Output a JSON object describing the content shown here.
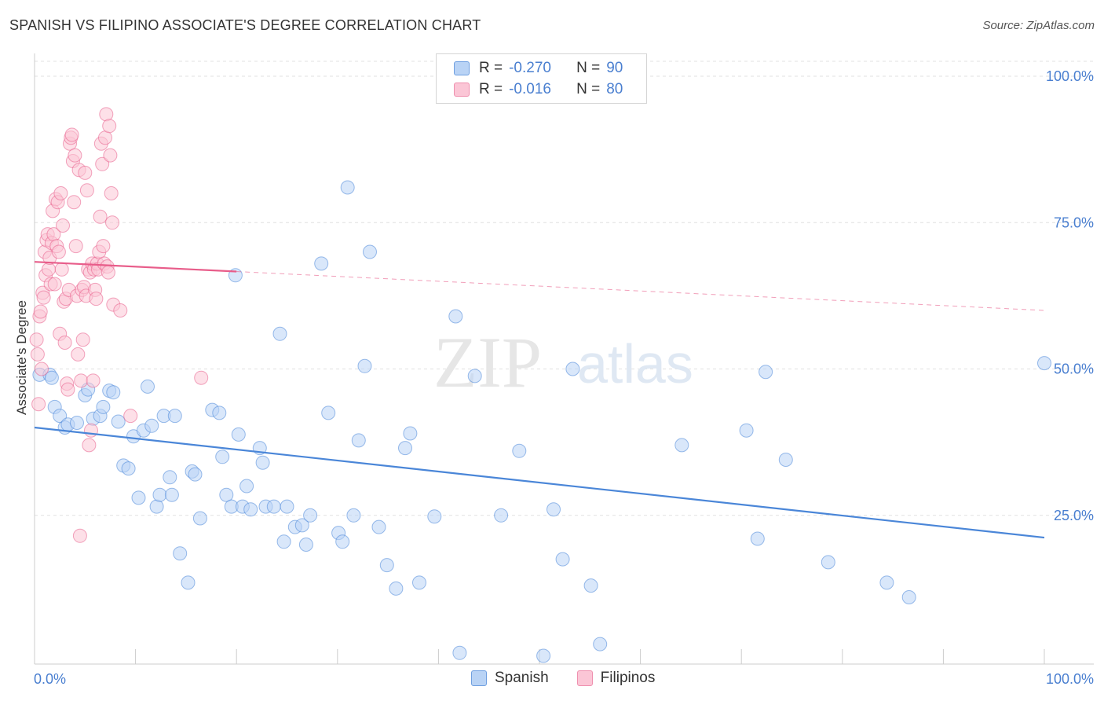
{
  "title": "SPANISH VS FILIPINO ASSOCIATE'S DEGREE CORRELATION CHART",
  "source": "Source: ZipAtlas.com",
  "watermark": {
    "zip": "ZIP",
    "atlas": "atlas"
  },
  "legend": {
    "r_label": "R =",
    "n_label": "N =",
    "rows": [
      {
        "name": "Spanish",
        "r": "-0.270",
        "n": "90",
        "fill": "#b9d3f5",
        "stroke": "#6f9fe0"
      },
      {
        "name": "Filipinos",
        "r": "-0.016",
        "n": "80",
        "fill": "#fbc6d6",
        "stroke": "#ef8fae"
      }
    ]
  },
  "chart_data": {
    "type": "scatter",
    "title": "SPANISH VS FILIPINO ASSOCIATE'S DEGREE CORRELATION CHART",
    "xlabel": "",
    "ylabel": "Associate's Degree",
    "xlim": [
      0,
      100
    ],
    "ylim": [
      0,
      100
    ],
    "x_tick_labels": [
      "0.0%",
      "100.0%"
    ],
    "y_ticks": [
      {
        "value": 100,
        "label": "100.0%"
      },
      {
        "value": 75,
        "label": "75.0%"
      },
      {
        "value": 50,
        "label": "50.0%"
      },
      {
        "value": 25,
        "label": "25.0%"
      }
    ],
    "series": [
      {
        "name": "Spanish",
        "color": "#4a86d8",
        "fill": "#b9d3f5",
        "trend": {
          "x0": 0,
          "y0": 40.0,
          "x1": 100,
          "y1": 21.2,
          "solid_until": 100
        },
        "points": [
          [
            0.5,
            49
          ],
          [
            1.5,
            49
          ],
          [
            1.7,
            48.5
          ],
          [
            2,
            43.5
          ],
          [
            2.5,
            42
          ],
          [
            3,
            40
          ],
          [
            3.3,
            40.5
          ],
          [
            4.2,
            40.8
          ],
          [
            5,
            45.5
          ],
          [
            5.3,
            46.5
          ],
          [
            5.8,
            41.5
          ],
          [
            6.5,
            42
          ],
          [
            6.8,
            43.5
          ],
          [
            7.4,
            46.3
          ],
          [
            7.8,
            46
          ],
          [
            8.3,
            41
          ],
          [
            8.8,
            33.5
          ],
          [
            9.3,
            33
          ],
          [
            9.8,
            38.5
          ],
          [
            10.3,
            28
          ],
          [
            10.8,
            39.5
          ],
          [
            11.2,
            47
          ],
          [
            11.6,
            40.3
          ],
          [
            12.1,
            26.5
          ],
          [
            12.4,
            28.5
          ],
          [
            12.8,
            42
          ],
          [
            13.4,
            31.5
          ],
          [
            13.6,
            28.5
          ],
          [
            13.9,
            42
          ],
          [
            14.4,
            18.5
          ],
          [
            15.2,
            13.5
          ],
          [
            15.6,
            32.5
          ],
          [
            15.9,
            32
          ],
          [
            16.4,
            24.5
          ],
          [
            17.6,
            43
          ],
          [
            18.3,
            42.5
          ],
          [
            18.6,
            35
          ],
          [
            19,
            28.5
          ],
          [
            19.5,
            26.5
          ],
          [
            19.9,
            66
          ],
          [
            20.2,
            38.8
          ],
          [
            20.6,
            26.5
          ],
          [
            21,
            30
          ],
          [
            21.4,
            26
          ],
          [
            22.3,
            36.5
          ],
          [
            22.6,
            34
          ],
          [
            22.9,
            26.5
          ],
          [
            23.7,
            26.5
          ],
          [
            24.3,
            56
          ],
          [
            24.7,
            20.5
          ],
          [
            25,
            26.5
          ],
          [
            25.8,
            23
          ],
          [
            26.5,
            23.3
          ],
          [
            26.9,
            20
          ],
          [
            27.3,
            25
          ],
          [
            28.4,
            68
          ],
          [
            29.1,
            42.5
          ],
          [
            30.1,
            22
          ],
          [
            30.5,
            20.5
          ],
          [
            31,
            81
          ],
          [
            31.6,
            25
          ],
          [
            32.1,
            37.8
          ],
          [
            32.7,
            50.5
          ],
          [
            33.2,
            70
          ],
          [
            34.1,
            23
          ],
          [
            34.9,
            16.5
          ],
          [
            35.8,
            12.5
          ],
          [
            36.7,
            36.5
          ],
          [
            37.2,
            39
          ],
          [
            38.1,
            13.5
          ],
          [
            39.6,
            24.8
          ],
          [
            41.7,
            59
          ],
          [
            42.1,
            1.5
          ],
          [
            43.6,
            48.8
          ],
          [
            46.2,
            25
          ],
          [
            48,
            36
          ],
          [
            50.4,
            1
          ],
          [
            51.4,
            26
          ],
          [
            52.3,
            17.5
          ],
          [
            53.3,
            50
          ],
          [
            55.1,
            13
          ],
          [
            56,
            3
          ],
          [
            64.1,
            37
          ],
          [
            70.5,
            39.5
          ],
          [
            71.6,
            21
          ],
          [
            72.4,
            49.5
          ],
          [
            74.4,
            34.5
          ],
          [
            78.6,
            17
          ],
          [
            84.4,
            13.5
          ],
          [
            86.6,
            11
          ],
          [
            100,
            51
          ]
        ]
      },
      {
        "name": "Filipinos",
        "color": "#e85d8a",
        "fill": "#fbc6d6",
        "trend": {
          "x0": 0,
          "y0": 68.3,
          "x1": 100,
          "y1": 60.0,
          "solid_until": 20
        },
        "points": [
          [
            0.2,
            55
          ],
          [
            0.3,
            52.5
          ],
          [
            0.4,
            44
          ],
          [
            0.5,
            59
          ],
          [
            0.6,
            59.8
          ],
          [
            0.7,
            50
          ],
          [
            0.8,
            63
          ],
          [
            0.9,
            62.2
          ],
          [
            1.0,
            70
          ],
          [
            1.1,
            66
          ],
          [
            1.2,
            72
          ],
          [
            1.3,
            73
          ],
          [
            1.4,
            67
          ],
          [
            1.5,
            69
          ],
          [
            1.6,
            64.5
          ],
          [
            1.7,
            71.5
          ],
          [
            1.8,
            77
          ],
          [
            1.9,
            73
          ],
          [
            2.0,
            64.5
          ],
          [
            2.1,
            79
          ],
          [
            2.2,
            71
          ],
          [
            2.3,
            78.5
          ],
          [
            2.4,
            70
          ],
          [
            2.5,
            56
          ],
          [
            2.6,
            80
          ],
          [
            2.7,
            67
          ],
          [
            2.8,
            74.5
          ],
          [
            2.9,
            61.5
          ],
          [
            3.0,
            54.5
          ],
          [
            3.1,
            62
          ],
          [
            3.2,
            47.5
          ],
          [
            3.3,
            46.5
          ],
          [
            3.4,
            63.5
          ],
          [
            3.5,
            88.5
          ],
          [
            3.6,
            89.5
          ],
          [
            3.7,
            90
          ],
          [
            3.8,
            85.5
          ],
          [
            3.9,
            78.5
          ],
          [
            4.0,
            86.5
          ],
          [
            4.1,
            71
          ],
          [
            4.2,
            62.5
          ],
          [
            4.3,
            52.5
          ],
          [
            4.4,
            84
          ],
          [
            4.5,
            21.5
          ],
          [
            4.6,
            48
          ],
          [
            4.7,
            63.5
          ],
          [
            4.8,
            55
          ],
          [
            4.9,
            64
          ],
          [
            5.0,
            83.5
          ],
          [
            5.1,
            62.5
          ],
          [
            5.2,
            80.5
          ],
          [
            5.3,
            67
          ],
          [
            5.4,
            37
          ],
          [
            5.5,
            66.5
          ],
          [
            5.6,
            39.5
          ],
          [
            5.7,
            68
          ],
          [
            5.8,
            48
          ],
          [
            5.9,
            67
          ],
          [
            6.0,
            63.5
          ],
          [
            6.1,
            62
          ],
          [
            6.2,
            68
          ],
          [
            6.3,
            67
          ],
          [
            6.4,
            70
          ],
          [
            6.5,
            76
          ],
          [
            6.6,
            88.5
          ],
          [
            6.7,
            85
          ],
          [
            6.8,
            71
          ],
          [
            6.9,
            68
          ],
          [
            7.0,
            89.5
          ],
          [
            7.1,
            93.5
          ],
          [
            7.2,
            67.5
          ],
          [
            7.3,
            66.5
          ],
          [
            7.4,
            91.5
          ],
          [
            7.5,
            86.5
          ],
          [
            7.6,
            80
          ],
          [
            7.7,
            75
          ],
          [
            7.8,
            61
          ],
          [
            8.5,
            60
          ],
          [
            9.5,
            42
          ],
          [
            16.5,
            48.5
          ]
        ]
      }
    ]
  }
}
